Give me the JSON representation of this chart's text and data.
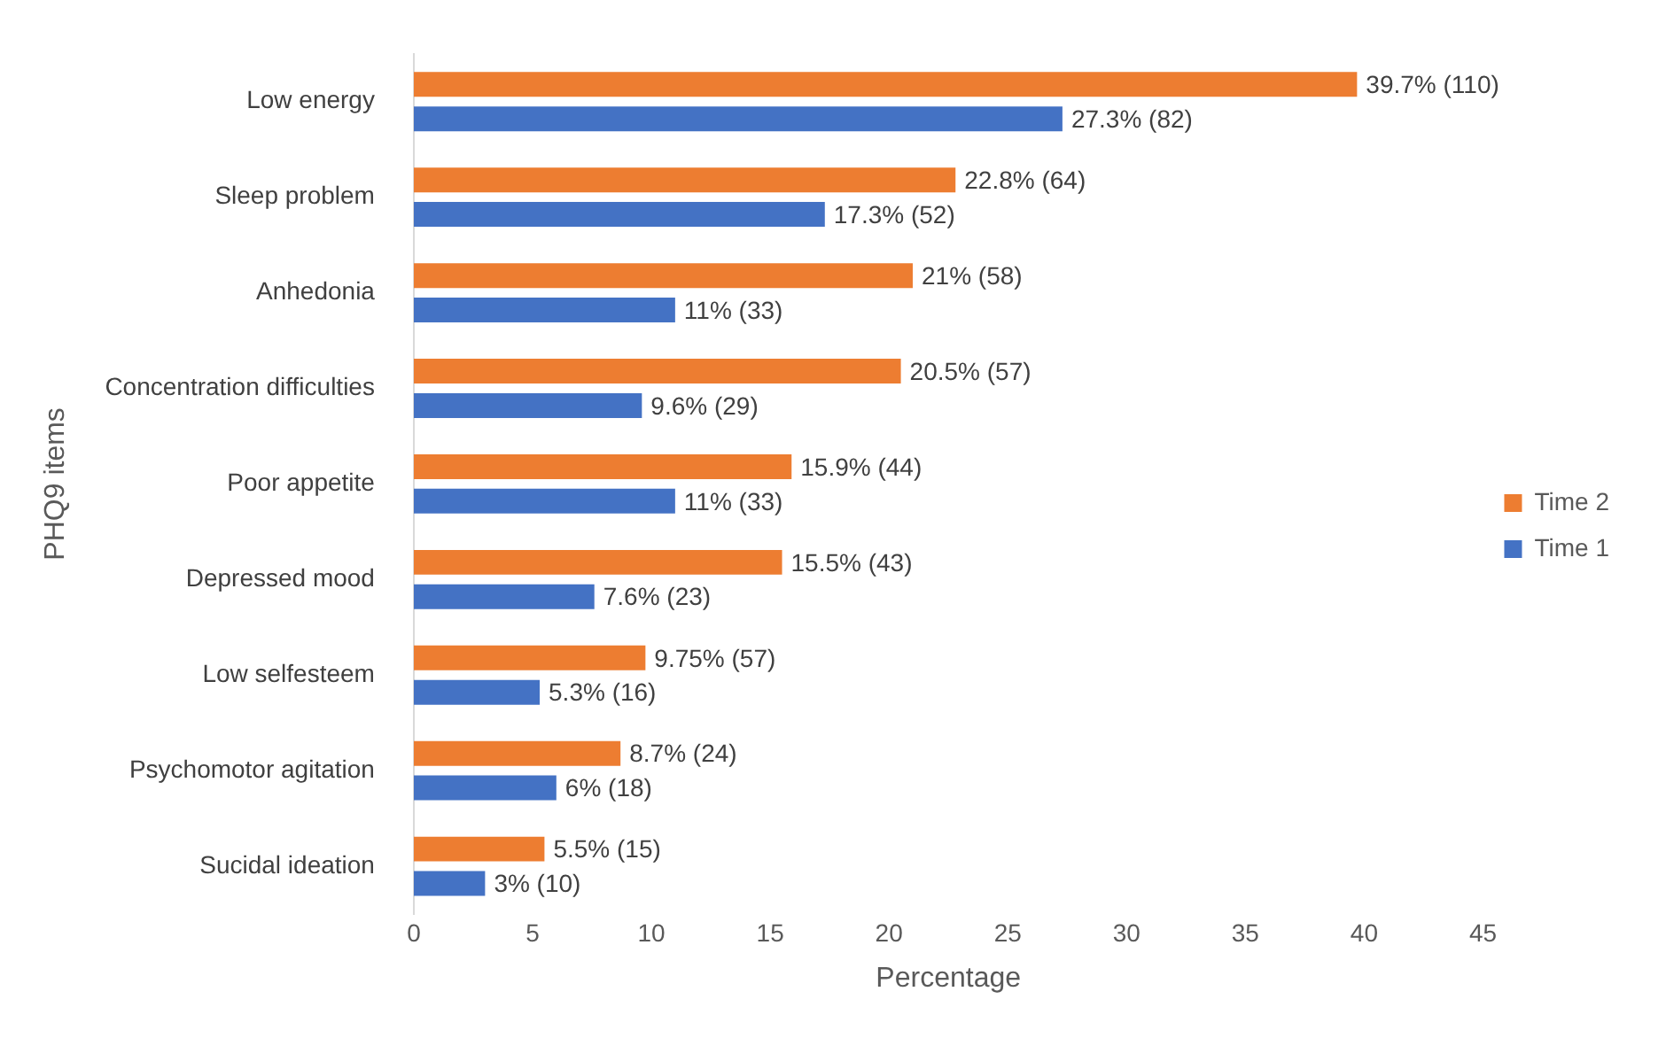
{
  "chart_data": {
    "type": "bar",
    "orientation": "horizontal",
    "xlabel": "Percentage",
    "ylabel": "PHQ9 items",
    "categories": [
      "Low energy",
      "Sleep problem",
      "Anhedonia",
      "Concentration difficulties",
      "Poor appetite",
      "Depressed mood",
      "Low selfesteem",
      "Psychomotor agitation",
      "Sucidal ideation"
    ],
    "series": [
      {
        "name": "Time 2",
        "color": "#ed7d31",
        "values": [
          39.7,
          22.8,
          21,
          20.5,
          15.9,
          15.5,
          9.75,
          8.7,
          5.5
        ],
        "value_labels": [
          "39.7% (110)",
          "22.8% (64)",
          "21% (58)",
          "20.5% (57)",
          "15.9% (44)",
          "15.5% (43)",
          "9.75% (57)",
          "8.7% (24)",
          "5.5% (15)"
        ]
      },
      {
        "name": "Time 1",
        "color": "#4472c4",
        "values": [
          27.3,
          17.3,
          11,
          9.6,
          11,
          7.6,
          5.3,
          6,
          3
        ],
        "value_labels": [
          "27.3% (82)",
          "17.3% (52)",
          "11% (33)",
          "9.6% (29)",
          "11% (33)",
          "7.6% (23)",
          "5.3% (16)",
          "6% (18)",
          "3% (10)"
        ]
      }
    ],
    "xlim": [
      0,
      45
    ],
    "xticks": [
      0,
      5,
      10,
      15,
      20,
      25,
      30,
      35,
      40,
      45
    ],
    "legend": "right"
  }
}
